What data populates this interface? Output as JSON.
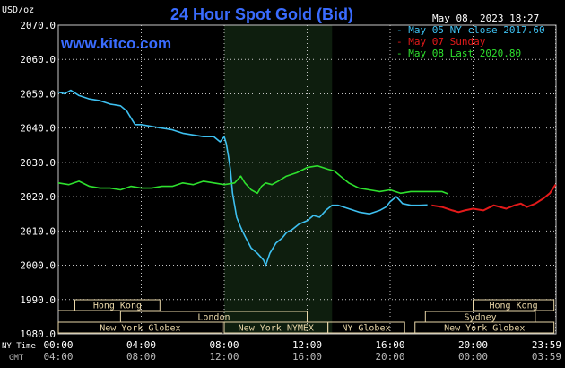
{
  "header": {
    "unit": "USD/oz",
    "title": "24 Hour Spot Gold (Bid)",
    "date": "May 08, 2023 18:27",
    "website": "www.kitco.com"
  },
  "colors": {
    "background": "#000000",
    "title": "#3a6cff",
    "website": "#3a6cff",
    "grid": "#c8c8c8",
    "night_shade": "#0e1e0e",
    "session_box": "#e8d6a8",
    "may05": "#3ec0f0",
    "may07": "#e41a1a",
    "may08": "#2ee02e"
  },
  "chart_data": {
    "type": "line",
    "title": "24 Hour Spot Gold (Bid)",
    "ylabel": "USD/oz",
    "ylim": [
      1980,
      2070
    ],
    "xlim": [
      0,
      24
    ],
    "grid": true,
    "legend_position": "top-right",
    "y_ticks": [
      "1980.0",
      "1990.0",
      "2000.0",
      "2010.0",
      "2020.0",
      "2030.0",
      "2040.0",
      "2050.0",
      "2060.0",
      "2070.0"
    ],
    "x_ticks_ny": [
      "00:00",
      "04:00",
      "08:00",
      "12:00",
      "16:00",
      "20:00",
      "23:59"
    ],
    "x_ticks_gmt": [
      "04:00",
      "08:00",
      "12:00",
      "16:00",
      "20:00",
      "00:00",
      "03:59"
    ],
    "x_row_labels": [
      "NY Time",
      "GMT"
    ],
    "x_tick_hours": [
      0,
      4,
      8,
      12,
      16,
      20,
      23.98
    ],
    "shaded_range": [
      8,
      13.2
    ],
    "series": [
      {
        "name": "May 05 NY close 2017.60",
        "color": "#3ec0f0",
        "x": [
          0,
          0.3,
          0.6,
          1.0,
          1.5,
          2.0,
          2.5,
          3.0,
          3.3,
          3.5,
          3.7,
          4.0,
          4.5,
          5.0,
          5.5,
          6.0,
          6.5,
          7.0,
          7.5,
          7.8,
          8.0,
          8.1,
          8.2,
          8.3,
          8.4,
          8.6,
          8.8,
          9.0,
          9.3,
          9.6,
          9.9,
          10.0,
          10.2,
          10.5,
          10.8,
          11.0,
          11.3,
          11.6,
          12.0,
          12.3,
          12.6,
          12.9,
          13.2,
          13.5,
          14.0,
          14.5,
          15.0,
          15.5,
          15.8,
          16.0,
          16.3,
          16.6,
          17.0,
          17.4,
          17.8
        ],
        "y": [
          2050.5,
          2050.0,
          2051.0,
          2049.5,
          2048.5,
          2048.0,
          2047.0,
          2046.5,
          2045.0,
          2043.0,
          2041.0,
          2041.0,
          2040.5,
          2040.0,
          2039.5,
          2038.5,
          2038.0,
          2037.5,
          2037.5,
          2036.0,
          2037.5,
          2035.5,
          2032.0,
          2028.0,
          2021.0,
          2014.0,
          2011.0,
          2008.5,
          2005.0,
          2003.5,
          2001.5,
          2000.0,
          2003.5,
          2006.5,
          2008.0,
          2009.5,
          2010.5,
          2012.0,
          2013.0,
          2014.5,
          2014.0,
          2016.0,
          2017.5,
          2017.5,
          2016.5,
          2015.5,
          2015.0,
          2016.0,
          2017.0,
          2018.5,
          2020.0,
          2018.0,
          2017.5,
          2017.5,
          2017.6
        ]
      },
      {
        "name": "May 07 Sunday",
        "color": "#e41a1a",
        "x": [
          18.0,
          18.5,
          19.0,
          19.3,
          19.6,
          20.0,
          20.5,
          21.0,
          21.3,
          21.6,
          22.0,
          22.3,
          22.6,
          23.0,
          23.4,
          23.7,
          23.98
        ],
        "y": [
          2017.5,
          2017.0,
          2016.0,
          2015.5,
          2016.0,
          2016.5,
          2016.0,
          2017.5,
          2017.0,
          2016.5,
          2017.5,
          2018.0,
          2017.0,
          2018.0,
          2019.5,
          2021.0,
          2023.5
        ]
      },
      {
        "name": "May 08 Last 2020.80",
        "color": "#2ee02e",
        "x": [
          0,
          0.5,
          1.0,
          1.5,
          2.0,
          2.5,
          3.0,
          3.5,
          4.0,
          4.5,
          5.0,
          5.5,
          6.0,
          6.5,
          7.0,
          7.5,
          8.0,
          8.5,
          8.8,
          9.0,
          9.3,
          9.6,
          9.8,
          10.0,
          10.3,
          10.6,
          11.0,
          11.5,
          12.0,
          12.5,
          13.0,
          13.3,
          13.6,
          14.0,
          14.5,
          15.0,
          15.5,
          16.0,
          16.5,
          17.0,
          17.5,
          18.0,
          18.5,
          18.8
        ],
        "y": [
          2024.0,
          2023.5,
          2024.5,
          2023.0,
          2022.5,
          2022.5,
          2022.0,
          2023.0,
          2022.5,
          2022.5,
          2023.0,
          2023.0,
          2024.0,
          2023.5,
          2024.5,
          2024.0,
          2023.5,
          2024.0,
          2026.0,
          2024.0,
          2022.0,
          2021.0,
          2023.0,
          2024.0,
          2023.5,
          2024.5,
          2026.0,
          2027.0,
          2028.5,
          2029.0,
          2028.0,
          2027.5,
          2026.0,
          2024.0,
          2022.5,
          2022.0,
          2021.5,
          2022.0,
          2021.0,
          2021.5,
          2021.5,
          2021.5,
          2021.5,
          2020.8
        ]
      }
    ]
  },
  "sessions": {
    "row1": [
      {
        "label": "Hong Kong",
        "start": 0.8,
        "end": 4.9
      },
      {
        "label": "Hong Kong",
        "start": 20.0,
        "end": 23.9
      }
    ],
    "row2": [
      {
        "label": "London",
        "start": 3.0,
        "end": 12.0
      },
      {
        "label": "Sydney",
        "start": 17.7,
        "end": 23.0
      }
    ],
    "row3": [
      {
        "label": "New York Globex",
        "start": 0.0,
        "end": 7.9
      },
      {
        "label": "New York NYMEX",
        "start": 8.0,
        "end": 13.0
      },
      {
        "label": "NY Globex",
        "start": 13.0,
        "end": 16.7
      },
      {
        "label": "New York Globex",
        "start": 17.2,
        "end": 23.9
      }
    ],
    "row_extents": [
      {
        "start": 0.0,
        "end": 0.8
      },
      {
        "start": 0.0,
        "end": 3.0
      },
      {
        "start": 16.7,
        "end": 23.9
      }
    ]
  }
}
